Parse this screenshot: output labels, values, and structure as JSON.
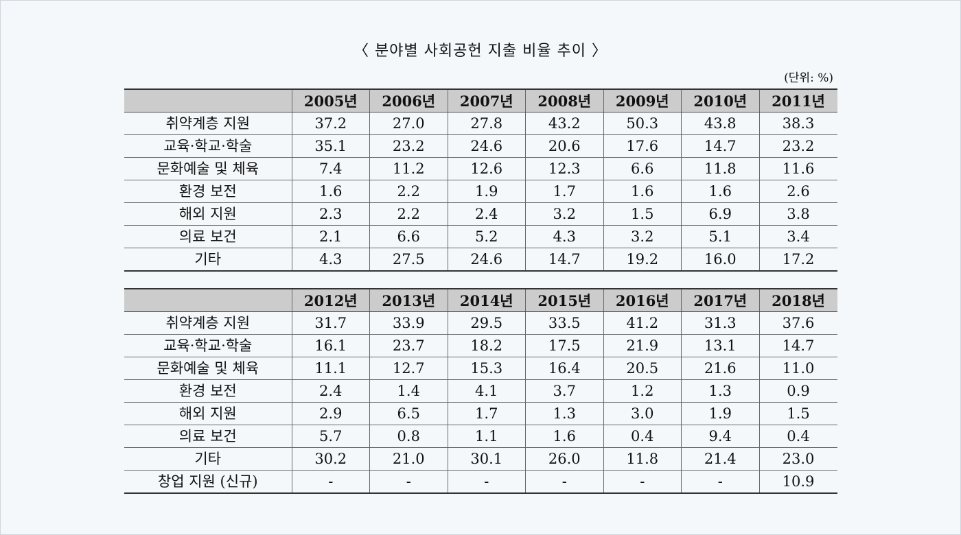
{
  "title": "〈 분야별 사회공헌 지출 비율 추이 〉",
  "unit": "(단위: %)",
  "chart_data": [
    {
      "type": "table",
      "columns": [
        "",
        "2005년",
        "2006년",
        "2007년",
        "2008년",
        "2009년",
        "2010년",
        "2011년"
      ],
      "rows": [
        [
          "취약계층 지원",
          "37.2",
          "27.0",
          "27.8",
          "43.2",
          "50.3",
          "43.8",
          "38.3"
        ],
        [
          "교육·학교·학술",
          "35.1",
          "23.2",
          "24.6",
          "20.6",
          "17.6",
          "14.7",
          "23.2"
        ],
        [
          "문화예술 및 체육",
          "7.4",
          "11.2",
          "12.6",
          "12.3",
          "6.6",
          "11.8",
          "11.6"
        ],
        [
          "환경 보전",
          "1.6",
          "2.2",
          "1.9",
          "1.7",
          "1.6",
          "1.6",
          "2.6"
        ],
        [
          "해외 지원",
          "2.3",
          "2.2",
          "2.4",
          "3.2",
          "1.5",
          "6.9",
          "3.8"
        ],
        [
          "의료 보건",
          "2.1",
          "6.6",
          "5.2",
          "4.3",
          "3.2",
          "5.1",
          "3.4"
        ],
        [
          "기타",
          "4.3",
          "27.5",
          "24.6",
          "14.7",
          "19.2",
          "16.0",
          "17.2"
        ]
      ]
    },
    {
      "type": "table",
      "columns": [
        "",
        "2012년",
        "2013년",
        "2014년",
        "2015년",
        "2016년",
        "2017년",
        "2018년"
      ],
      "rows": [
        [
          "취약계층 지원",
          "31.7",
          "33.9",
          "29.5",
          "33.5",
          "41.2",
          "31.3",
          "37.6"
        ],
        [
          "교육·학교·학술",
          "16.1",
          "23.7",
          "18.2",
          "17.5",
          "21.9",
          "13.1",
          "14.7"
        ],
        [
          "문화예술 및 체육",
          "11.1",
          "12.7",
          "15.3",
          "16.4",
          "20.5",
          "21.6",
          "11.0"
        ],
        [
          "환경 보전",
          "2.4",
          "1.4",
          "4.1",
          "3.7",
          "1.2",
          "1.3",
          "0.9"
        ],
        [
          "해외 지원",
          "2.9",
          "6.5",
          "1.7",
          "1.3",
          "3.0",
          "1.9",
          "1.5"
        ],
        [
          "의료 보건",
          "5.7",
          "0.8",
          "1.1",
          "1.6",
          "0.4",
          "9.4",
          "0.4"
        ],
        [
          "기타",
          "30.2",
          "21.0",
          "30.1",
          "26.0",
          "11.8",
          "21.4",
          "23.0"
        ],
        [
          "창업 지원 (신규)",
          "-",
          "-",
          "-",
          "-",
          "-",
          "-",
          "10.9"
        ]
      ]
    }
  ]
}
